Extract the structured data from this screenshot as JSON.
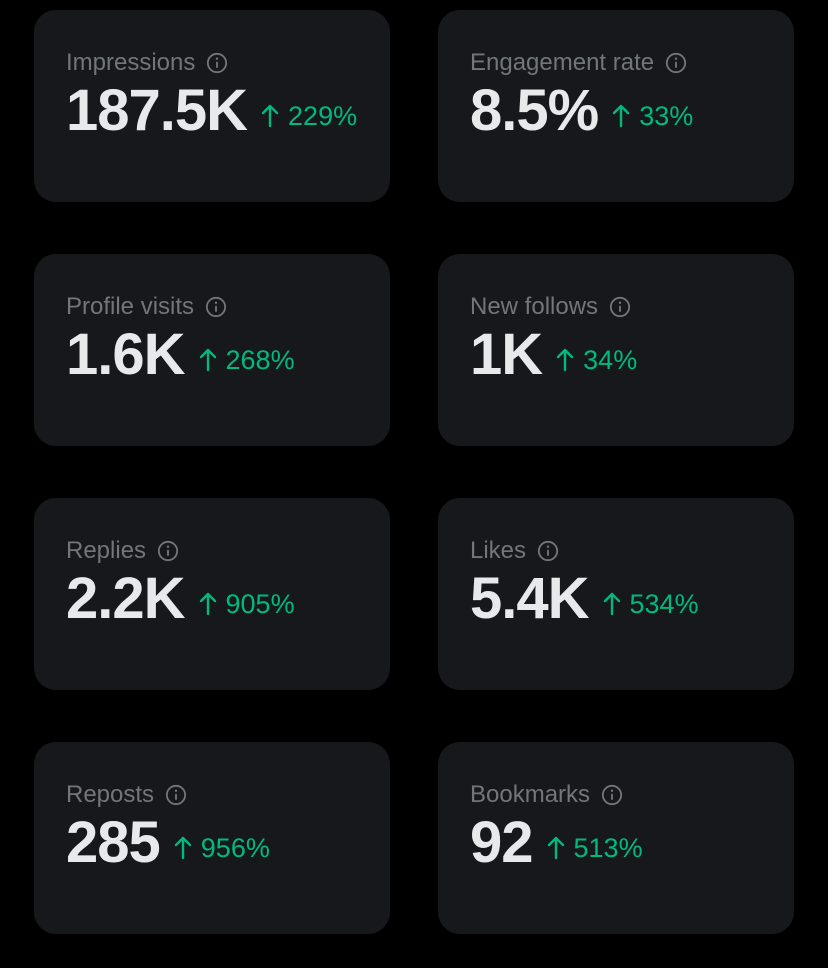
{
  "colors": {
    "background": "#000000",
    "card": "#16181c",
    "label": "#71767b",
    "value": "#e7e9ea",
    "positive": "#00ba7c"
  },
  "metrics": [
    {
      "label": "Impressions",
      "value": "187.5K",
      "change": "229%",
      "direction": "up",
      "icon": "info-icon"
    },
    {
      "label": "Engagement rate",
      "value": "8.5%",
      "change": "33%",
      "direction": "up",
      "icon": "info-icon"
    },
    {
      "label": "Profile visits",
      "value": "1.6K",
      "change": "268%",
      "direction": "up",
      "icon": "info-icon"
    },
    {
      "label": "New follows",
      "value": "1K",
      "change": "34%",
      "direction": "up",
      "icon": "info-icon"
    },
    {
      "label": "Replies",
      "value": "2.2K",
      "change": "905%",
      "direction": "up",
      "icon": "info-icon"
    },
    {
      "label": "Likes",
      "value": "5.4K",
      "change": "534%",
      "direction": "up",
      "icon": "info-icon"
    },
    {
      "label": "Reposts",
      "value": "285",
      "change": "956%",
      "direction": "up",
      "icon": "info-icon"
    },
    {
      "label": "Bookmarks",
      "value": "92",
      "change": "513%",
      "direction": "up",
      "icon": "info-icon"
    }
  ]
}
